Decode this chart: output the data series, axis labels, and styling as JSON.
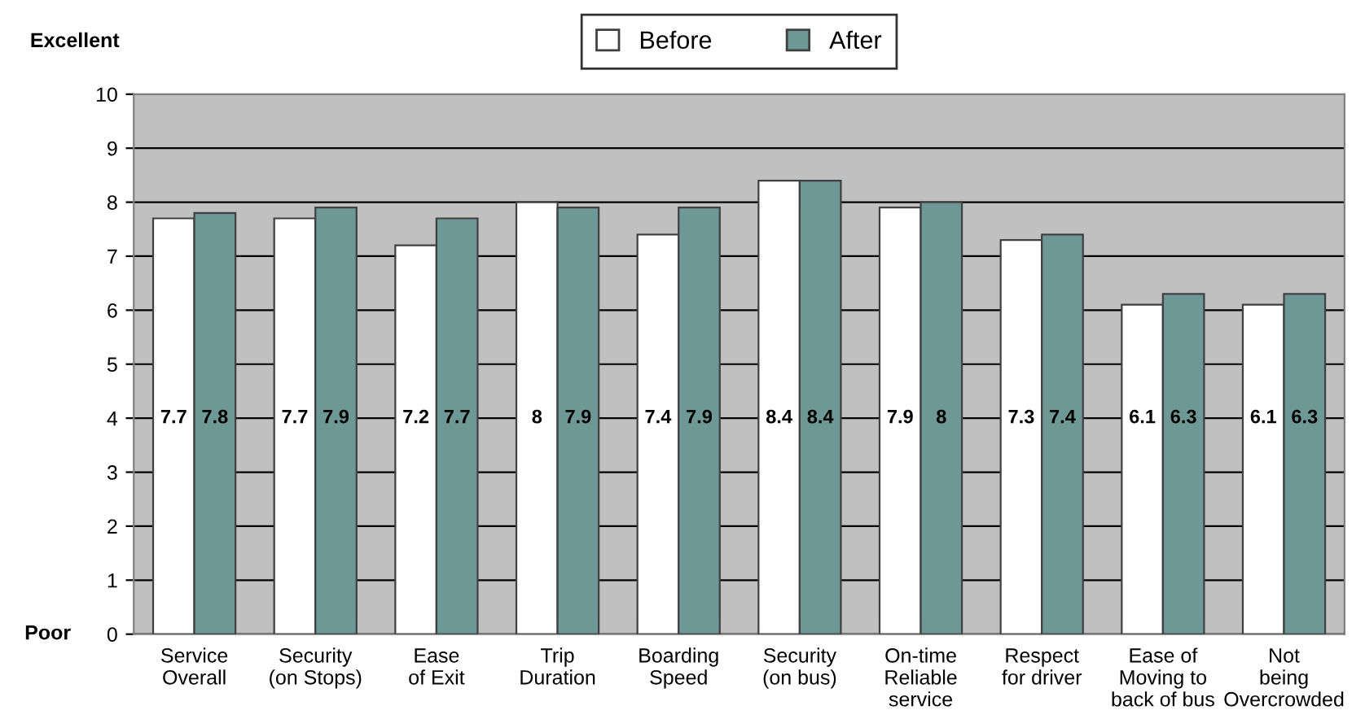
{
  "chart_data": {
    "type": "bar",
    "categories": [
      "Service\nOverall",
      "Security\n(on Stops)",
      "Ease\nof Exit",
      "Trip\nDuration",
      "Boarding\nSpeed",
      "Security\n(on bus)",
      "On-time\nReliable\nservice",
      "Respect\nfor driver",
      "Ease of\nMoving to\nback of bus",
      "Not\nbeing\nOvercrowded"
    ],
    "series": [
      {
        "name": "Before",
        "color": "#ffffff",
        "values": [
          7.7,
          7.7,
          7.2,
          8,
          7.4,
          8.4,
          7.9,
          7.3,
          6.1,
          6.1
        ]
      },
      {
        "name": "After",
        "color": "#6e9896",
        "values": [
          7.8,
          7.9,
          7.7,
          7.9,
          7.9,
          8.4,
          8,
          7.4,
          6.3,
          6.3
        ]
      }
    ],
    "ylim": [
      0,
      10
    ],
    "yticks": [
      0,
      1,
      2,
      3,
      4,
      5,
      6,
      7,
      8,
      9,
      10
    ],
    "grid": "y",
    "legend": "top",
    "data_labels": true,
    "annotations": [
      "Excellent",
      "Poor"
    ]
  }
}
